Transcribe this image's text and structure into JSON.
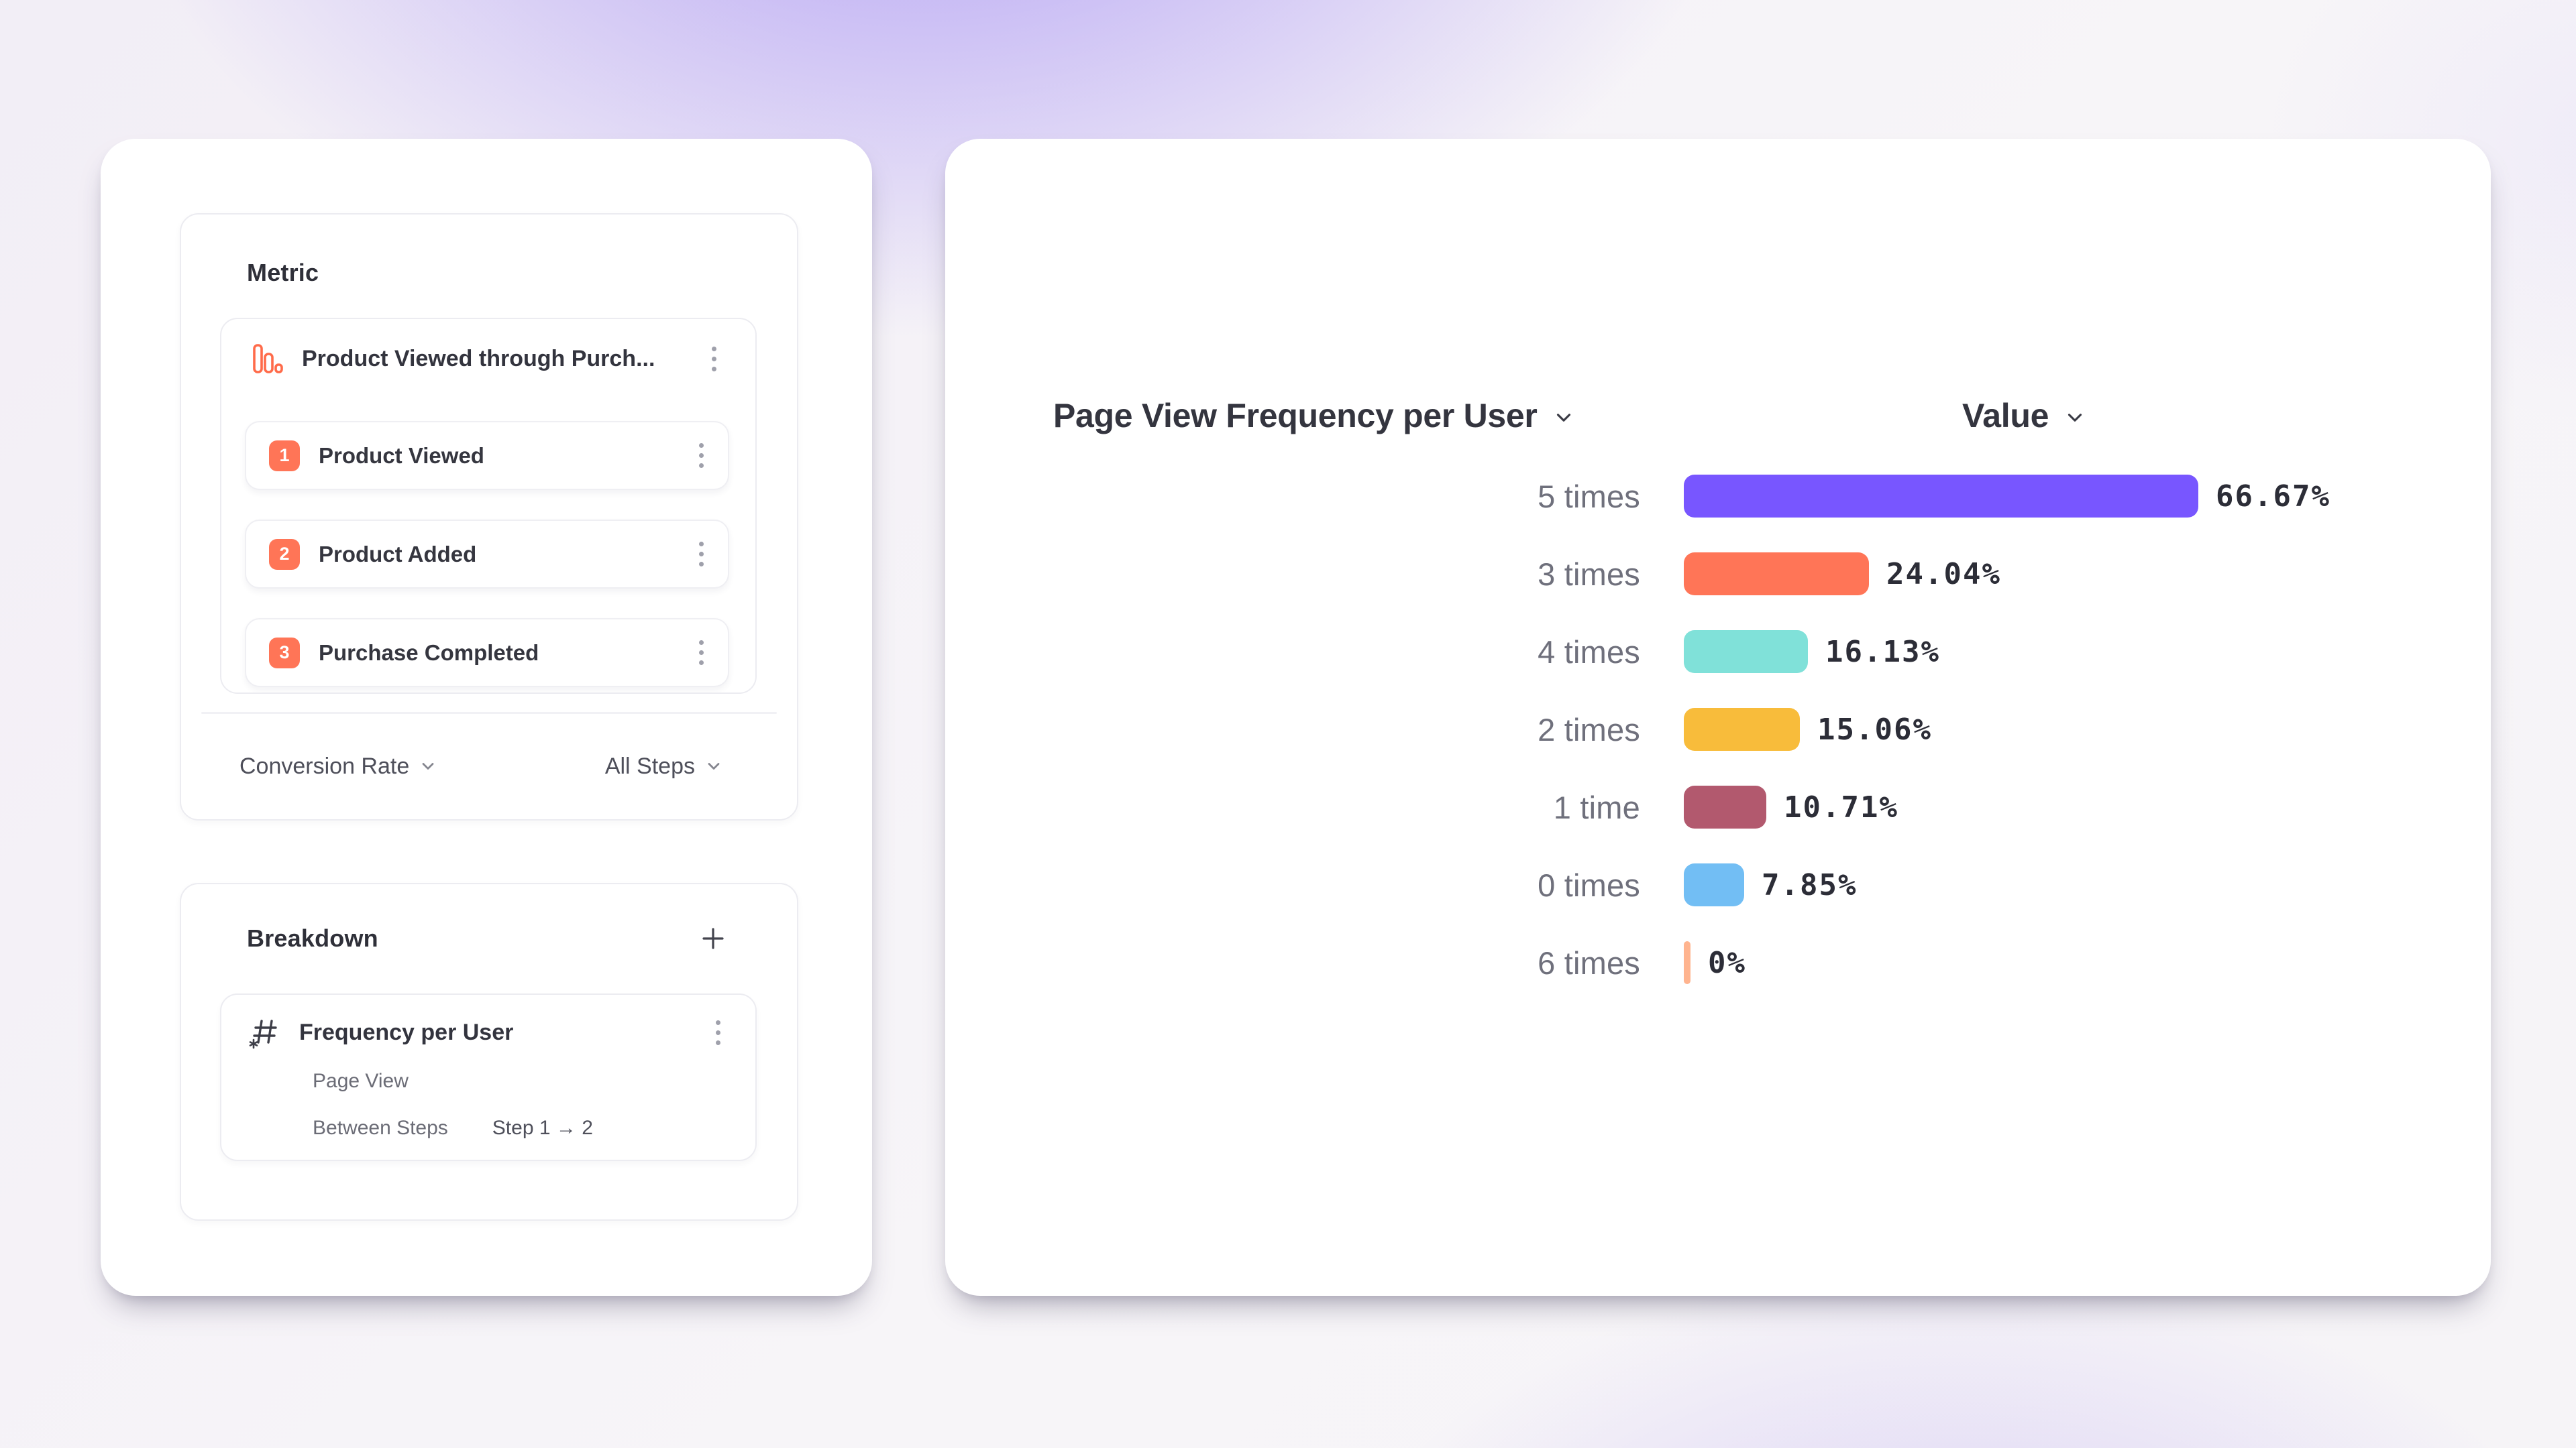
{
  "colors": {
    "accent_orange": "#FF7557",
    "icon_orange_stroke": "#FF6B4A",
    "kebab_gray": "#9FA0AB",
    "dark_text": "#33343E",
    "gray_text": "#6B6C76"
  },
  "metric": {
    "title": "Metric",
    "funnel_name": "Product Viewed through Purch...",
    "funnel_icon": "funnel-bars-icon",
    "steps": [
      {
        "number": "1",
        "label": "Product Viewed"
      },
      {
        "number": "2",
        "label": "Product Added"
      },
      {
        "number": "3",
        "label": "Purchase Completed"
      }
    ],
    "conversion_label": "Conversion Rate",
    "steps_scope_label": "All Steps"
  },
  "breakdown": {
    "title": "Breakdown",
    "add_icon": "plus-icon",
    "item": {
      "icon": "numeric-property-icon",
      "name": "Frequency per User",
      "event": "Page View",
      "between_label": "Between Steps",
      "step_range": "Step 1 → 2"
    }
  },
  "chart_data": {
    "type": "bar",
    "orientation": "horizontal",
    "title": "Page View Frequency per User",
    "value_header": "Value",
    "categories": [
      "5 times",
      "3 times",
      "4 times",
      "2 times",
      "1 time",
      "0 times",
      "6 times"
    ],
    "values": [
      66.67,
      24.04,
      16.13,
      15.06,
      10.71,
      7.85,
      0
    ],
    "value_labels": [
      "66.67%",
      "24.04%",
      "16.13%",
      "15.06%",
      "10.71%",
      "7.85%",
      "0%"
    ],
    "bar_colors": [
      "#7856FF",
      "#FF7557",
      "#80E1D9",
      "#F8BC3B",
      "#B2596E",
      "#72BEF4",
      "#FFB48F"
    ],
    "xlim": [
      0,
      100
    ],
    "grid": false,
    "legend": "none",
    "value_label_position": "end-of-bar"
  }
}
